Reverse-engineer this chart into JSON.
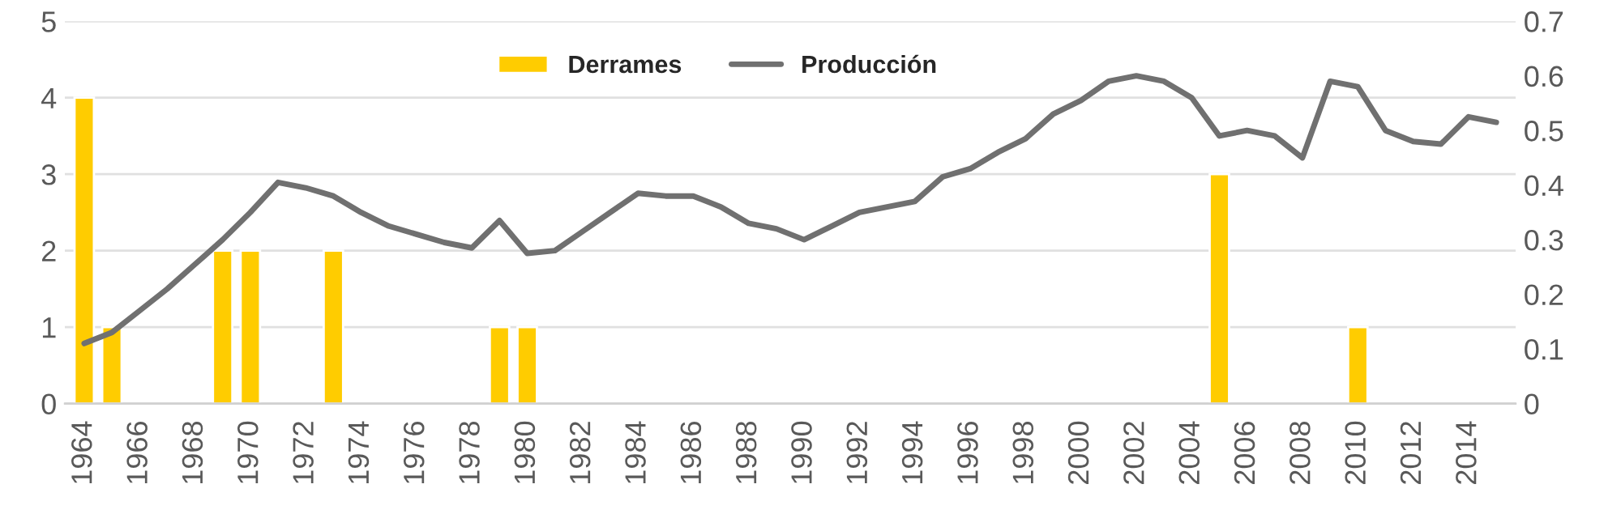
{
  "chart_data": {
    "type": "bar",
    "categories": [
      "1964",
      null,
      "1966",
      null,
      "1968",
      null,
      "1970",
      null,
      "1972",
      null,
      "1974",
      null,
      "1976",
      null,
      "1978",
      null,
      "1980",
      null,
      "1982",
      null,
      "1984",
      null,
      "1986",
      null,
      "1988",
      null,
      "1990",
      null,
      "1992",
      null,
      "1994",
      null,
      "1996",
      null,
      "1998",
      null,
      "2000",
      null,
      "2002",
      null,
      "2004",
      null,
      "2006",
      null,
      "2008",
      null,
      "2010",
      null,
      "2012",
      null,
      "2014",
      null
    ],
    "series": [
      {
        "name": "Derrames",
        "color": "#ffcc00",
        "values": [
          4,
          1,
          null,
          null,
          null,
          2,
          2,
          null,
          null,
          2,
          null,
          null,
          null,
          null,
          null,
          1,
          1,
          null,
          null,
          null,
          null,
          null,
          null,
          null,
          null,
          null,
          null,
          null,
          null,
          null,
          null,
          null,
          null,
          null,
          null,
          null,
          null,
          null,
          null,
          null,
          null,
          3,
          null,
          null,
          null,
          null,
          1,
          null,
          null,
          null,
          null,
          null
        ]
      },
      {
        "name": "Producción",
        "type": "line",
        "axis": "y2",
        "color": "#707070",
        "values": [
          0.11,
          0.13,
          0.17,
          0.21,
          0.255,
          0.3,
          0.35,
          0.405,
          0.395,
          0.38,
          0.35,
          0.325,
          0.31,
          0.295,
          0.285,
          0.335,
          0.275,
          0.28,
          0.315,
          0.35,
          0.385,
          0.38,
          0.38,
          0.36,
          0.33,
          0.32,
          0.3,
          0.325,
          0.35,
          0.36,
          0.37,
          0.415,
          0.43,
          0.46,
          0.485,
          0.53,
          0.555,
          0.59,
          0.6,
          0.59,
          0.56,
          0.49,
          0.5,
          0.49,
          0.45,
          0.59,
          0.58,
          0.5,
          0.48,
          0.475,
          0.525,
          0.515
        ]
      }
    ],
    "ylim": [
      0,
      5
    ],
    "yticks": [
      0,
      1,
      2,
      3,
      4,
      5
    ],
    "y2lim": [
      0,
      0.7
    ],
    "y2ticks": [
      0,
      0.1,
      0.2,
      0.3,
      0.4,
      0.5,
      0.6,
      0.7
    ],
    "grid": "y",
    "legend": "top"
  }
}
